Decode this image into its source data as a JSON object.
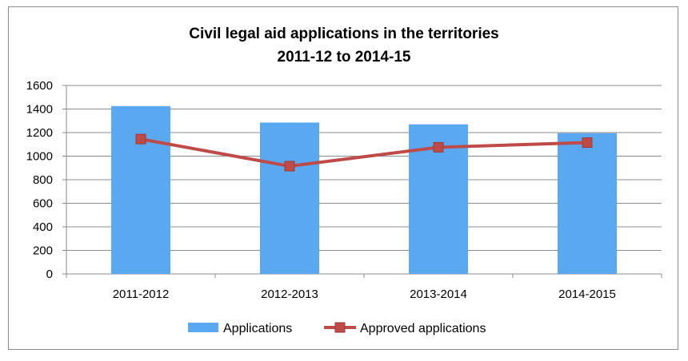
{
  "chart_data": {
    "type": "bar",
    "title": "Civil legal aid applications in the territories",
    "subtitle": "2011-12 to 2014-15",
    "categories": [
      "2011-2012",
      "2012-2013",
      "2013-2014",
      "2014-2015"
    ],
    "series": [
      {
        "name": "Applications",
        "type": "bar",
        "color": "#5aa9f0",
        "values": [
          1425,
          1285,
          1270,
          1195
        ]
      },
      {
        "name": "Approved applications",
        "type": "line",
        "color": "#bf4b49",
        "values": [
          1145,
          915,
          1075,
          1115
        ]
      }
    ],
    "ylim": [
      0,
      1600
    ],
    "yticks": [
      0,
      200,
      400,
      600,
      800,
      1000,
      1200,
      1400,
      1600
    ],
    "grid": true,
    "legend": "bottom",
    "xlabel": "",
    "ylabel": ""
  }
}
